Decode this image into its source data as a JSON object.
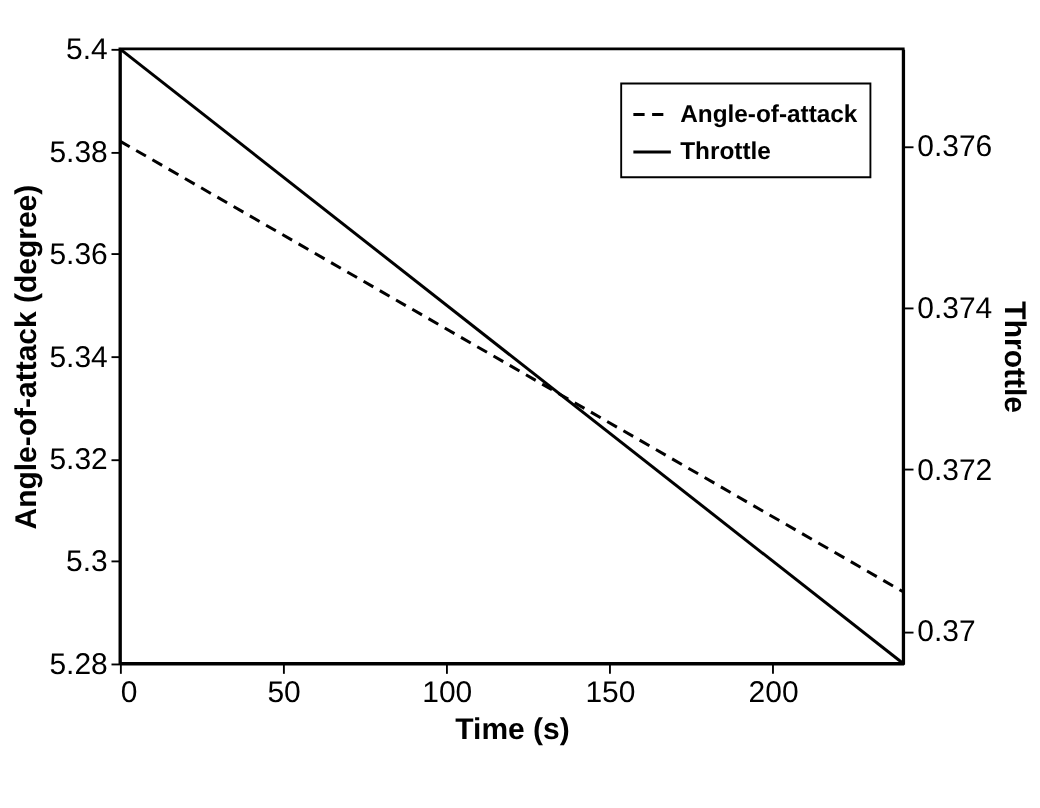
{
  "chart_data": {
    "type": "line",
    "xlabel": "Time (s)",
    "ylabel": "Angle-of-attack (degree)",
    "y2label": "Throttle",
    "x": [
      0,
      240
    ],
    "series": [
      {
        "name": "Angle-of-attack",
        "color": "#000000",
        "line_style": "dashed",
        "values": [
          5.382,
          5.294
        ]
      },
      {
        "name": "Throttle",
        "color": "#000000",
        "line_style": "solid",
        "axis": "y2",
        "values": [
          0.3772,
          0.3696
        ]
      }
    ],
    "xlim": [
      0,
      240
    ],
    "xticks": [
      0,
      50,
      100,
      150,
      200
    ],
    "ylim": [
      5.28,
      5.4
    ],
    "yticks": [
      5.28,
      5.3,
      5.32,
      5.34,
      5.36,
      5.38,
      5.4
    ],
    "y2lim": [
      0.3696,
      0.3772
    ],
    "y2ticks": [
      0.37,
      0.372,
      0.374,
      0.376
    ],
    "grid": false,
    "legend": "top right",
    "marker": "none"
  }
}
